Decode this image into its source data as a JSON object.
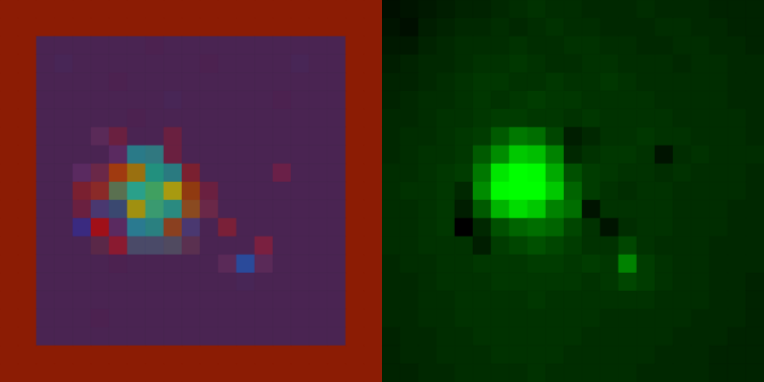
{
  "chart_data": [
    {
      "type": "heatmap",
      "tick_labels": false,
      "colors": [
        [
          "#8c1c04",
          "#8c1c04",
          "#8c1c04",
          "#8c1c04",
          "#8c1c04",
          "#8c1c04",
          "#8c1c04",
          "#8c1c04",
          "#8c1c04",
          "#8c1c04",
          "#8c1c04",
          "#8c1c04",
          "#8c1c04",
          "#8c1c04",
          "#8c1c04",
          "#8c1c04",
          "#8c1c04",
          "#8c1c04",
          "#8c1c04",
          "#8c1c04",
          "#8c1c04"
        ],
        [
          "#8c1c04",
          "#8c1c04",
          "#8c1c04",
          "#8c1c04",
          "#8c1c04",
          "#8c1c04",
          "#8c1c04",
          "#8c1c04",
          "#8c1c04",
          "#8c1c04",
          "#8c1c04",
          "#8c1c04",
          "#8c1c04",
          "#8c1c04",
          "#8c1c04",
          "#8c1c04",
          "#8c1c04",
          "#8c1c04",
          "#8c1c04",
          "#8c1c04",
          "#8c1c04"
        ],
        [
          "#8c1c04",
          "#8c1c04",
          "#4a2452",
          "#4a2452",
          "#4a2452",
          "#4a2452",
          "#4a2452",
          "#4a2452",
          "#4c2250",
          "#4a2452",
          "#4a2452",
          "#4a2452",
          "#4a2452",
          "#4a2452",
          "#4a2452",
          "#4a2452",
          "#4a2452",
          "#4a2452",
          "#4a2452",
          "#8c1c04",
          "#8c1c04"
        ],
        [
          "#8c1c04",
          "#8c1c04",
          "#4a2452",
          "#482656",
          "#4a2452",
          "#4a2452",
          "#4a2452",
          "#4a2452",
          "#4a2452",
          "#4a2452",
          "#4a2452",
          "#4c2250",
          "#4a2452",
          "#4a2452",
          "#4a2452",
          "#4a2452",
          "#482656",
          "#4a2452",
          "#4a2452",
          "#8c1c04",
          "#8c1c04"
        ],
        [
          "#8c1c04",
          "#8c1c04",
          "#4a2452",
          "#4a2452",
          "#4a2452",
          "#4a2452",
          "#4c2250",
          "#4a2452",
          "#4a2452",
          "#4a2452",
          "#4a2452",
          "#4a2452",
          "#4a2452",
          "#4a2452",
          "#4a2452",
          "#4a2452",
          "#4a2452",
          "#4a2452",
          "#4a2452",
          "#8c1c04",
          "#8c1c04"
        ],
        [
          "#8c1c04",
          "#8c1c04",
          "#4a2452",
          "#4a2452",
          "#4a2452",
          "#4a2452",
          "#4a2452",
          "#4a2452",
          "#4a2452",
          "#482656",
          "#4a2452",
          "#4a2452",
          "#4a2452",
          "#4a2452",
          "#4a2452",
          "#4c2250",
          "#4a2452",
          "#4a2452",
          "#4a2452",
          "#8c1c04",
          "#8c1c04"
        ],
        [
          "#8c1c04",
          "#8c1c04",
          "#4a2452",
          "#4a2452",
          "#4a2452",
          "#4a2452",
          "#4a2452",
          "#4c2250",
          "#4a2452",
          "#4a2452",
          "#4a2452",
          "#4a2452",
          "#4a2452",
          "#4a2452",
          "#4a2452",
          "#4a2452",
          "#4a2452",
          "#4a2452",
          "#4a2452",
          "#8c1c04",
          "#8c1c04"
        ],
        [
          "#8c1c04",
          "#8c1c04",
          "#4a2452",
          "#4a2452",
          "#4a2452",
          "#5a2a58",
          "#6a2040",
          "#4a2452",
          "#4a2452",
          "#6a2040",
          "#4a2452",
          "#4a2452",
          "#4a2452",
          "#4a2452",
          "#4a2452",
          "#4a2452",
          "#4a2452",
          "#4a2452",
          "#4a2452",
          "#8c1c04",
          "#8c1c04"
        ],
        [
          "#8c1c04",
          "#8c1c04",
          "#4a2452",
          "#4a2452",
          "#4a2452",
          "#4a2452",
          "#5a2a60",
          "#2a7a88",
          "#307880",
          "#6a2040",
          "#4a2452",
          "#4a2452",
          "#4a2452",
          "#4a2452",
          "#4a2452",
          "#4a2452",
          "#4a2452",
          "#4a2452",
          "#4a2452",
          "#8c1c04",
          "#8c1c04"
        ],
        [
          "#8c1c04",
          "#8c1c04",
          "#4a2452",
          "#4a2452",
          "#5a2a60",
          "#6a2848",
          "#a03a10",
          "#9a7010",
          "#22907e",
          "#2a7a80",
          "#7a2030",
          "#4a2452",
          "#4a2452",
          "#4a2452",
          "#4a2452",
          "#6a2048",
          "#4a2452",
          "#4a2452",
          "#4a2452",
          "#8c1c04",
          "#8c1c04"
        ],
        [
          "#8c1c04",
          "#8c1c04",
          "#4a2452",
          "#4a2452",
          "#7a2030",
          "#8a2a28",
          "#5a7050",
          "#2aa08a",
          "#40a060",
          "#a89a10",
          "#903a10",
          "#6a2040",
          "#4a2452",
          "#4a2452",
          "#4a2452",
          "#4a2452",
          "#4a2452",
          "#4a2452",
          "#4a2452",
          "#8c1c04",
          "#8c1c04"
        ],
        [
          "#8c1c04",
          "#8c1c04",
          "#4a2452",
          "#4a2452",
          "#6a2040",
          "#4a3870",
          "#3a4870",
          "#a09010",
          "#3a9a70",
          "#2a8a80",
          "#8a4a20",
          "#6a2848",
          "#4a2452",
          "#4a2452",
          "#4a2452",
          "#4a2452",
          "#4a2452",
          "#4a2452",
          "#4a2452",
          "#8c1c04",
          "#8c1c04"
        ],
        [
          "#8c1c04",
          "#8c1c04",
          "#4a2452",
          "#4a2452",
          "#3a2a80",
          "#a01018",
          "#5a2a60",
          "#2a7a90",
          "#2a8080",
          "#8a4020",
          "#4a3870",
          "#4a2452",
          "#7a2038",
          "#4a2452",
          "#4a2452",
          "#4a2452",
          "#4a2452",
          "#4a2452",
          "#4a2452",
          "#8c1c04",
          "#8c1c04"
        ],
        [
          "#8c1c04",
          "#8c1c04",
          "#4a2452",
          "#4a2452",
          "#4a2452",
          "#5a2848",
          "#8a1a30",
          "#4a4a68",
          "#4a4a68",
          "#504a60",
          "#5a3050",
          "#4a2452",
          "#4a2452",
          "#4a2452",
          "#7a2040",
          "#4a2452",
          "#4a2452",
          "#4a2452",
          "#4a2452",
          "#8c1c04",
          "#8c1c04"
        ],
        [
          "#8c1c04",
          "#8c1c04",
          "#4a2452",
          "#4a2452",
          "#4a2452",
          "#4a2452",
          "#4c2250",
          "#4a2452",
          "#4a2452",
          "#4a2452",
          "#4a2452",
          "#4a2452",
          "#5a2a58",
          "#2a4a9a",
          "#5a2a58",
          "#4a2452",
          "#4a2452",
          "#4a2452",
          "#4a2452",
          "#8c1c04",
          "#8c1c04"
        ],
        [
          "#8c1c04",
          "#8c1c04",
          "#4a2452",
          "#4a2452",
          "#4a2452",
          "#4a2452",
          "#4a2452",
          "#4a2452",
          "#4a2452",
          "#4a2452",
          "#4a2452",
          "#4a2452",
          "#4a2452",
          "#482656",
          "#4a2452",
          "#4a2452",
          "#4a2452",
          "#4a2452",
          "#4a2452",
          "#8c1c04",
          "#8c1c04"
        ],
        [
          "#8c1c04",
          "#8c1c04",
          "#4a2452",
          "#4a2452",
          "#4a2452",
          "#4a2452",
          "#4a2452",
          "#4a2452",
          "#4a2452",
          "#4a2452",
          "#4a2452",
          "#4a2452",
          "#4a2452",
          "#4a2452",
          "#4a2452",
          "#4a2452",
          "#4a2452",
          "#4a2452",
          "#4a2452",
          "#8c1c04",
          "#8c1c04"
        ],
        [
          "#8c1c04",
          "#8c1c04",
          "#4a2452",
          "#4a2452",
          "#4a2452",
          "#4c2250",
          "#4a2452",
          "#4a2452",
          "#4a2452",
          "#4a2452",
          "#4a2452",
          "#4a2452",
          "#4a2452",
          "#4a2452",
          "#4a2452",
          "#4a2452",
          "#4a2452",
          "#4a2452",
          "#4a2452",
          "#8c1c04",
          "#8c1c04"
        ],
        [
          "#8c1c04",
          "#8c1c04",
          "#4a2452",
          "#4a2452",
          "#4a2452",
          "#4a2452",
          "#4a2452",
          "#4a2452",
          "#4a2452",
          "#4a2452",
          "#4a2452",
          "#4a2452",
          "#4a2452",
          "#4a2452",
          "#4a2452",
          "#4a2452",
          "#4a2452",
          "#4a2452",
          "#4a2452",
          "#8c1c04",
          "#8c1c04"
        ],
        [
          "#8c1c04",
          "#8c1c04",
          "#8c1c04",
          "#8c1c04",
          "#8c1c04",
          "#8c1c04",
          "#8c1c04",
          "#8c1c04",
          "#8c1c04",
          "#8c1c04",
          "#8c1c04",
          "#8c1c04",
          "#8c1c04",
          "#8c1c04",
          "#8c1c04",
          "#8c1c04",
          "#8c1c04",
          "#8c1c04",
          "#8c1c04",
          "#8c1c04",
          "#8c1c04"
        ],
        [
          "#8c1c04",
          "#8c1c04",
          "#8c1c04",
          "#8c1c04",
          "#8c1c04",
          "#8c1c04",
          "#8c1c04",
          "#8c1c04",
          "#8c1c04",
          "#8c1c04",
          "#8c1c04",
          "#8c1c04",
          "#8c1c04",
          "#8c1c04",
          "#8c1c04",
          "#8c1c04",
          "#8c1c04",
          "#8c1c04",
          "#8c1c04",
          "#8c1c04",
          "#8c1c04"
        ]
      ]
    },
    {
      "type": "heatmap",
      "tick_labels": false,
      "color": "#00ff00",
      "zlim": [
        0,
        255
      ],
      "values": [
        [
          15,
          20,
          25,
          30,
          35,
          35,
          40,
          45,
          50,
          45,
          45,
          40,
          40,
          40,
          45,
          40,
          40,
          40,
          35,
          35,
          35
        ],
        [
          20,
          15,
          30,
          35,
          40,
          40,
          45,
          40,
          45,
          50,
          45,
          45,
          40,
          40,
          40,
          45,
          45,
          40,
          40,
          35,
          35
        ],
        [
          25,
          25,
          35,
          40,
          45,
          45,
          45,
          50,
          45,
          45,
          50,
          50,
          45,
          45,
          40,
          40,
          45,
          45,
          40,
          40,
          35
        ],
        [
          30,
          35,
          40,
          40,
          45,
          50,
          50,
          55,
          50,
          45,
          45,
          50,
          50,
          45,
          45,
          45,
          40,
          45,
          45,
          40,
          40
        ],
        [
          35,
          35,
          40,
          45,
          50,
          55,
          55,
          50,
          50,
          55,
          50,
          50,
          55,
          50,
          45,
          45,
          45,
          45,
          45,
          40,
          40
        ],
        [
          35,
          40,
          45,
          45,
          50,
          55,
          50,
          55,
          60,
          55,
          55,
          50,
          50,
          50,
          50,
          45,
          45,
          45,
          45,
          40,
          40
        ],
        [
          40,
          40,
          45,
          50,
          50,
          55,
          60,
          60,
          55,
          55,
          50,
          55,
          50,
          50,
          50,
          50,
          45,
          45,
          45,
          45,
          40
        ],
        [
          40,
          45,
          45,
          50,
          55,
          60,
          90,
          120,
          110,
          70,
          30,
          40,
          50,
          50,
          55,
          50,
          50,
          45,
          45,
          45,
          40
        ],
        [
          40,
          45,
          50,
          50,
          55,
          90,
          140,
          200,
          190,
          130,
          40,
          50,
          55,
          55,
          50,
          20,
          45,
          50,
          45,
          45,
          45
        ],
        [
          45,
          45,
          50,
          55,
          60,
          120,
          230,
          255,
          250,
          170,
          80,
          60,
          55,
          50,
          50,
          45,
          50,
          45,
          45,
          45,
          40
        ],
        [
          45,
          50,
          50,
          55,
          40,
          140,
          250,
          255,
          255,
          200,
          100,
          60,
          50,
          45,
          50,
          50,
          45,
          45,
          45,
          45,
          40
        ],
        [
          45,
          45,
          50,
          55,
          30,
          90,
          180,
          220,
          200,
          130,
          110,
          20,
          50,
          50,
          50,
          50,
          45,
          45,
          45,
          40,
          40
        ],
        [
          45,
          45,
          50,
          55,
          0,
          40,
          80,
          100,
          110,
          100,
          70,
          50,
          20,
          45,
          50,
          50,
          45,
          45,
          45,
          40,
          40
        ],
        [
          45,
          45,
          50,
          50,
          50,
          30,
          60,
          70,
          80,
          70,
          60,
          50,
          50,
          70,
          50,
          45,
          45,
          45,
          40,
          40,
          40
        ],
        [
          40,
          45,
          45,
          50,
          50,
          55,
          55,
          55,
          60,
          60,
          55,
          60,
          55,
          130,
          60,
          50,
          45,
          45,
          40,
          40,
          40
        ],
        [
          40,
          40,
          45,
          50,
          50,
          50,
          55,
          55,
          55,
          55,
          55,
          50,
          55,
          70,
          60,
          50,
          45,
          45,
          40,
          40,
          35
        ],
        [
          40,
          40,
          45,
          45,
          50,
          50,
          50,
          50,
          55,
          50,
          50,
          50,
          50,
          50,
          50,
          45,
          45,
          45,
          40,
          40,
          35
        ],
        [
          40,
          40,
          45,
          45,
          50,
          50,
          50,
          50,
          50,
          50,
          50,
          50,
          45,
          45,
          45,
          45,
          45,
          40,
          40,
          40,
          35
        ],
        [
          35,
          40,
          40,
          45,
          45,
          50,
          50,
          50,
          50,
          50,
          50,
          45,
          45,
          45,
          45,
          45,
          40,
          40,
          40,
          35,
          35
        ],
        [
          35,
          40,
          40,
          45,
          45,
          45,
          50,
          50,
          50,
          50,
          45,
          45,
          45,
          45,
          45,
          40,
          40,
          40,
          35,
          35,
          35
        ],
        [
          35,
          35,
          40,
          40,
          45,
          45,
          45,
          45,
          50,
          45,
          45,
          45,
          45,
          45,
          40,
          40,
          40,
          40,
          35,
          35,
          35
        ]
      ]
    }
  ]
}
